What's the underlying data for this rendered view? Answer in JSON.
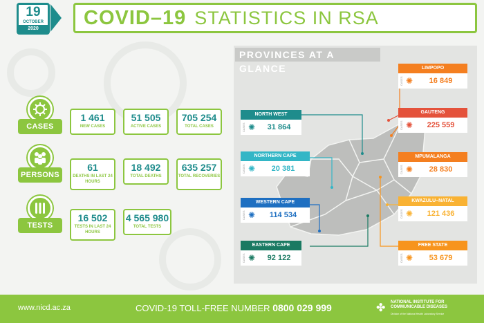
{
  "header": {
    "date_day": "19",
    "date_month": "OCTOBER",
    "date_year": "2020",
    "title_strong": "COVID–19",
    "title_rest": "STATISTICS IN RSA"
  },
  "categories": [
    {
      "label": "CASES",
      "stats": [
        {
          "value": "1 461",
          "label": "NEW CASES"
        },
        {
          "value": "51 505",
          "label": "ACTIVE CASES"
        },
        {
          "value": "705 254",
          "label": "TOTAL CASES"
        }
      ]
    },
    {
      "label": "PERSONS",
      "stats": [
        {
          "value": "61",
          "label": "DEATHS IN LAST 24 HOURS"
        },
        {
          "value": "18 492",
          "label": "TOTAL DEATHS"
        },
        {
          "value": "635 257",
          "label": "TOTAL RECOVERIES"
        }
      ]
    },
    {
      "label": "TESTS",
      "stats": [
        {
          "value": "16 502",
          "label": "TESTS IN LAST 24 HOURS"
        },
        {
          "value": "4 565 980",
          "label": "TOTAL TESTS"
        }
      ]
    }
  ],
  "provinces_title": "PROVINCES AT A GLANCE",
  "provinces": {
    "limpopo": {
      "name": "LIMPOPO",
      "cases": "16 849",
      "color": "#f47f20"
    },
    "gauteng": {
      "name": "GAUTENG",
      "cases": "225 559",
      "color": "#e4523b"
    },
    "mpumalanga": {
      "name": "MPUMALANGA",
      "cases": "28 830",
      "color": "#f47f20"
    },
    "kwazulu_natal": {
      "name": "KWAZULU–NATAL",
      "cases": "121 436",
      "color": "#f9b233"
    },
    "free_state": {
      "name": "FREE STATE",
      "cases": "53 679",
      "color": "#f7941d"
    },
    "north_west": {
      "name": "NORTH WEST",
      "cases": "31 864",
      "color": "#1e8c8c"
    },
    "northern_cape": {
      "name": "NORTHERN CAPE",
      "cases": "20 381",
      "color": "#33b6c6"
    },
    "western_cape": {
      "name": "WESTERN CAPE",
      "cases": "114 534",
      "color": "#1e6fc1"
    },
    "eastern_cape": {
      "name": "EASTERN CAPE",
      "cases": "92 122",
      "color": "#1a7a62"
    }
  },
  "card_side_label": "CASES",
  "footer": {
    "url": "www.nicd.ac.za",
    "toll_label": "COVID-19 TOLL-FREE NUMBER",
    "toll_number": "0800 029 999",
    "org_name_1": "NATIONAL INSTITUTE FOR",
    "org_name_2": "COMMUNICABLE DISEASES",
    "org_sub": "Division of the National Health Laboratory Service"
  },
  "colors": {
    "green": "#8cc63f",
    "teal": "#1e8c8c"
  }
}
